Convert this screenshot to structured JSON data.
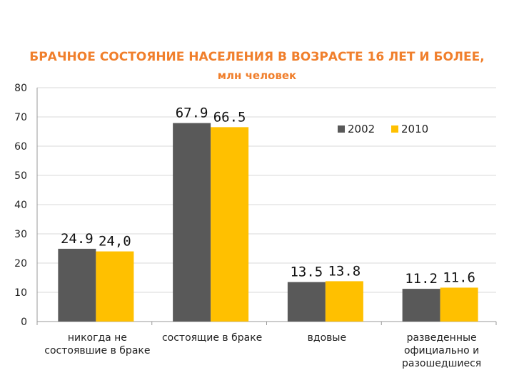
{
  "chart_data": {
    "type": "bar",
    "title": "БРАЧНОЕ СОСТОЯНИЕ НАСЕЛЕНИЯ В ВОЗРАСТЕ 16 ЛЕТ И БОЛЕЕ,",
    "subtitle": "млн человек",
    "categories": [
      [
        "никогда не",
        "состоявшие в браке"
      ],
      [
        "состоящие в браке"
      ],
      [
        "вдовые"
      ],
      [
        "разведенные",
        "официально и",
        "разошедшиеся"
      ]
    ],
    "series": [
      {
        "name": "2002",
        "color": "#595959",
        "values": [
          24.9,
          67.9,
          13.5,
          11.2
        ],
        "labels": [
          "24.9",
          "67.9",
          "13.5",
          "11.2"
        ]
      },
      {
        "name": "2010",
        "color": "#ffc000",
        "values": [
          24.0,
          66.5,
          13.8,
          11.6
        ],
        "labels": [
          "24,0",
          "66.5",
          "13.8",
          "11.6"
        ]
      }
    ],
    "yticks": [
      "0",
      "10",
      "20",
      "30",
      "40",
      "50",
      "60",
      "70",
      "80"
    ],
    "ylim": [
      0,
      80
    ],
    "grid": true,
    "legend": "top-right"
  }
}
